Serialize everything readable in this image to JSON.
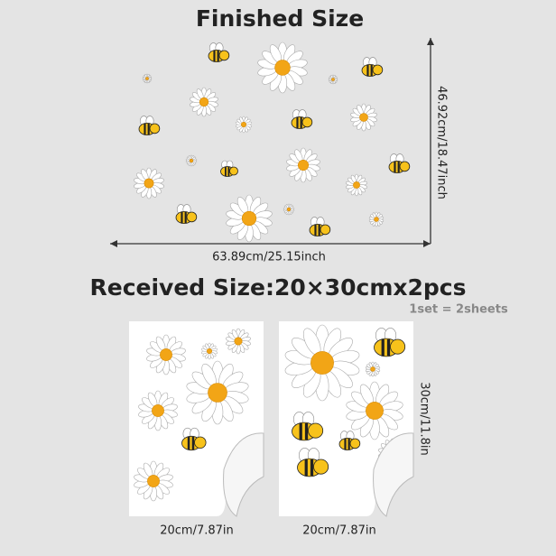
{
  "finished": {
    "title": "Finished Size",
    "height": "46.92cm/18.47inch",
    "width": "63.89cm/25.15inch"
  },
  "received": {
    "title": "Received Size:20×30cmx2pcs",
    "note": "1set = 2sheets",
    "sheet_height": "30cm/11.8in",
    "sheets": [
      {
        "width": "20cm/7.87in"
      },
      {
        "width": "20cm/7.87in"
      }
    ]
  }
}
